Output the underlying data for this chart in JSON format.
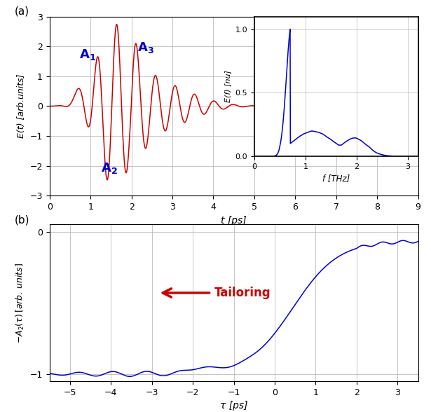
{
  "panel_a": {
    "xlim": [
      0,
      9
    ],
    "ylim": [
      -3,
      3
    ],
    "xticks": [
      0,
      1,
      2,
      3,
      4,
      5,
      6,
      7,
      8,
      9
    ],
    "yticks": [
      -3,
      -2,
      -1,
      0,
      1,
      2,
      3
    ],
    "xlabel": "t [ps]",
    "ylabel": "E(t) [arb.units]",
    "line_color": "#cc0000",
    "label_color": "#0000cc"
  },
  "inset": {
    "xlim": [
      0,
      3.2
    ],
    "ylim": [
      0,
      1.1
    ],
    "xticks": [
      0,
      1,
      2,
      3
    ],
    "yticks": [
      0,
      0.5,
      1
    ],
    "xlabel": "f [THz]",
    "ylabel": "E(f) [nu]",
    "line_color": "#0000cc"
  },
  "panel_b": {
    "xlim": [
      -5.5,
      3.5
    ],
    "ylim": [
      -1.05,
      0.05
    ],
    "xticks": [
      -5,
      -4,
      -3,
      -2,
      -1,
      0,
      1,
      2,
      3
    ],
    "yticks": [
      -1,
      0
    ],
    "xlabel": "τ [ps]",
    "ylabel": "$-A_2(\\tau)\\,[arb.\\,units]$",
    "line_color": "#0000cc",
    "arrow_color": "#cc0000",
    "tailoring_color": "#cc0000"
  },
  "background_color": "#ffffff",
  "grid_color": "#bbbbbb"
}
